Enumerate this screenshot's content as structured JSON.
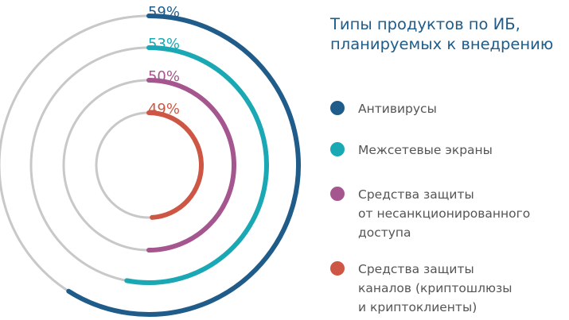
{
  "title_lines": [
    "Типы продуктов по ИБ,",
    "планируемых к внедрению"
  ],
  "chart_data": {
    "type": "radial-bar",
    "series": [
      {
        "name": "Антивирусы",
        "value": 59,
        "label": "59%",
        "color": "#1f5c8a",
        "legend_lines": [
          "Антивирусы"
        ]
      },
      {
        "name": "Межсетевые экраны",
        "value": 53,
        "label": "53%",
        "color": "#1aa8b4",
        "legend_lines": [
          "Межсетевые экраны"
        ]
      },
      {
        "name": "Средства защиты от несанкционированного доступа",
        "value": 50,
        "label": "50%",
        "color": "#a5568f",
        "legend_lines": [
          "Средства защиты",
          "от несанкционированного",
          "доступа"
        ]
      },
      {
        "name": "Средства защиты каналов (криптошлюзы и криптоклиенты)",
        "value": 49,
        "label": "49%",
        "color": "#cd5744",
        "legend_lines": [
          "Средства защиты",
          "каналов (криптошлюзы",
          "и криптоклиенты)"
        ]
      }
    ],
    "max": 100,
    "track_color": "#c8c8c8"
  }
}
